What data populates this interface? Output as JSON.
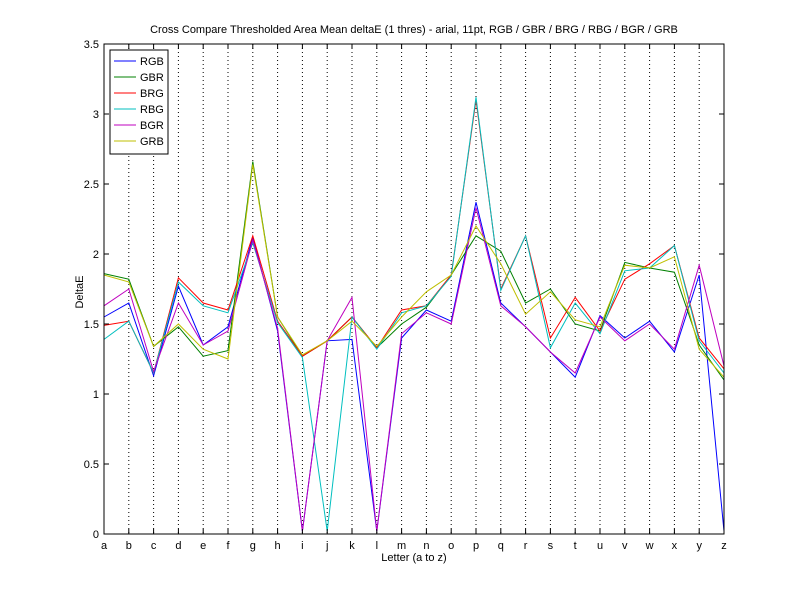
{
  "chart_data": {
    "type": "line",
    "title": "Cross Compare Thresholded Area Mean deltaE (1 thres) - arial, 11pt, RGB / GBR / BRG / RBG / BGR / GRB",
    "xlabel": "Letter (a to z)",
    "ylabel": "DeltaE",
    "ylim": [
      0,
      3.5
    ],
    "yticks": [
      "0",
      "0.5",
      "1",
      "1.5",
      "2",
      "2.5",
      "3",
      "3.5"
    ],
    "grid": "x-dotted",
    "legend": "top-left",
    "categories": [
      "a",
      "b",
      "c",
      "d",
      "e",
      "f",
      "g",
      "h",
      "i",
      "j",
      "k",
      "l",
      "m",
      "n",
      "o",
      "p",
      "q",
      "r",
      "s",
      "t",
      "u",
      "v",
      "w",
      "x",
      "y",
      "z"
    ],
    "series": [
      {
        "name": "RGB",
        "color": "#0000ff",
        "values": [
          1.55,
          1.65,
          1.13,
          1.77,
          1.35,
          1.48,
          2.12,
          1.45,
          0.02,
          1.38,
          1.39,
          0.02,
          1.4,
          1.6,
          1.52,
          2.37,
          1.65,
          1.48,
          1.3,
          1.12,
          1.56,
          1.4,
          1.52,
          1.3,
          1.85,
          0.02
        ]
      },
      {
        "name": "GBR",
        "color": "#008000",
        "values": [
          1.86,
          1.82,
          1.34,
          1.48,
          1.27,
          1.31,
          2.66,
          1.55,
          1.27,
          1.38,
          1.55,
          1.33,
          1.5,
          1.62,
          1.85,
          2.13,
          2.02,
          1.65,
          1.75,
          1.5,
          1.45,
          1.94,
          1.9,
          1.87,
          1.35,
          1.1
        ]
      },
      {
        "name": "BRG",
        "color": "#ff0000",
        "values": [
          1.49,
          1.52,
          1.15,
          1.83,
          1.65,
          1.6,
          2.13,
          1.52,
          1.27,
          1.38,
          1.55,
          1.33,
          1.6,
          1.63,
          1.85,
          3.1,
          1.75,
          2.13,
          1.4,
          1.69,
          1.45,
          1.82,
          1.93,
          2.06,
          1.4,
          1.18
        ]
      },
      {
        "name": "RBG",
        "color": "#00bfbf",
        "values": [
          1.39,
          1.52,
          1.15,
          1.8,
          1.63,
          1.58,
          2.08,
          1.51,
          1.26,
          0.02,
          1.55,
          1.32,
          1.58,
          1.63,
          1.84,
          3.12,
          1.74,
          2.13,
          1.33,
          1.65,
          1.43,
          1.88,
          1.9,
          2.06,
          1.38,
          1.15
        ]
      },
      {
        "name": "BGR",
        "color": "#bf00bf",
        "values": [
          1.63,
          1.75,
          1.16,
          1.65,
          1.35,
          1.45,
          2.1,
          1.47,
          0.02,
          1.38,
          1.69,
          0.02,
          1.43,
          1.58,
          1.5,
          2.33,
          1.63,
          1.48,
          1.3,
          1.15,
          1.55,
          1.38,
          1.5,
          1.32,
          1.92,
          1.2
        ]
      },
      {
        "name": "GRB",
        "color": "#bfbf00",
        "values": [
          1.85,
          1.8,
          1.34,
          1.5,
          1.32,
          1.25,
          2.64,
          1.55,
          1.28,
          1.38,
          1.52,
          1.34,
          1.55,
          1.73,
          1.85,
          2.2,
          1.93,
          1.57,
          1.73,
          1.53,
          1.48,
          1.92,
          1.9,
          1.98,
          1.32,
          1.12
        ]
      }
    ]
  }
}
